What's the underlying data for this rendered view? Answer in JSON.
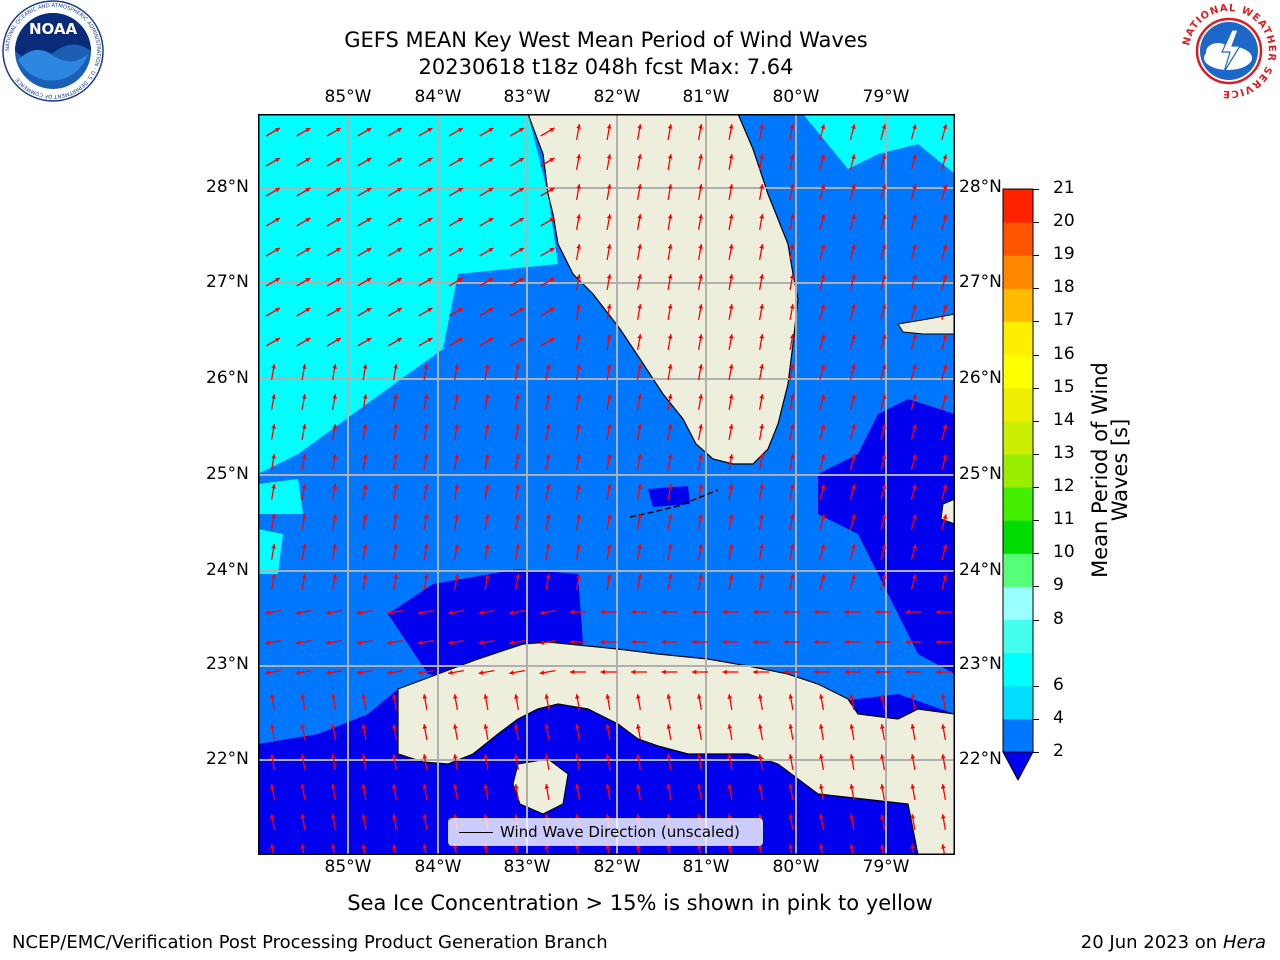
{
  "title": {
    "line1": "GEFS MEAN Key West Mean Period of Wind Waves",
    "line2": "20230618 t18z 048h fcst   Max: 7.64"
  },
  "logos": {
    "left": "NOAA",
    "right_text": "NATIONAL WEATHER SERVICE",
    "left_ring_text": "NATIONAL OCEANIC AND ATMOSPHERIC ADMINISTRATION · U.S. DEPARTMENT OF COMMERCE"
  },
  "map": {
    "lon_ticks": [
      "85°W",
      "84°W",
      "83°W",
      "82°W",
      "81°W",
      "80°W",
      "79°W"
    ],
    "lat_ticks": [
      "28°N",
      "27°N",
      "26°N",
      "25°N",
      "24°N",
      "23°N",
      "22°N"
    ],
    "extent": {
      "lon_min": -86.0,
      "lon_max": -78.25,
      "lat_min": 21.05,
      "lat_max": 28.75
    },
    "legend": "Wind Wave Direction (unscaled)",
    "colors": {
      "land": "#eeeedd",
      "coast": "#000000",
      "grid": "#b0b0b0",
      "arrow": "#ff0000"
    }
  },
  "colorbar": {
    "label": "Mean Period of Wind Waves [s]",
    "ticks": [
      "21",
      "20",
      "19",
      "18",
      "17",
      "16",
      "15",
      "14",
      "13",
      "12",
      "11",
      "10",
      "9",
      "8",
      "6",
      "4",
      "2"
    ],
    "levels": [
      2,
      4,
      6,
      7,
      8,
      9,
      10,
      11,
      12,
      13,
      14,
      15,
      16,
      17,
      18,
      19,
      20,
      21
    ],
    "colors": [
      "#0077ff",
      "#00ddff",
      "#00ffff",
      "#44ffee",
      "#99ffff",
      "#55ff77",
      "#00dd00",
      "#44ee00",
      "#99ee00",
      "#ccee00",
      "#eeee00",
      "#ffff00",
      "#ffee00",
      "#ffbb00",
      "#ff8800",
      "#ff5500",
      "#ff2200"
    ],
    "under_color": "#0000ee"
  },
  "footnote": "Sea Ice Concentration > 15% is shown in pink to yellow",
  "credits": {
    "left": "NCEP/EMC/Verification Post Processing Product Generation Branch",
    "right_date": "20 Jun 2023 on",
    "right_system": "Hera"
  }
}
